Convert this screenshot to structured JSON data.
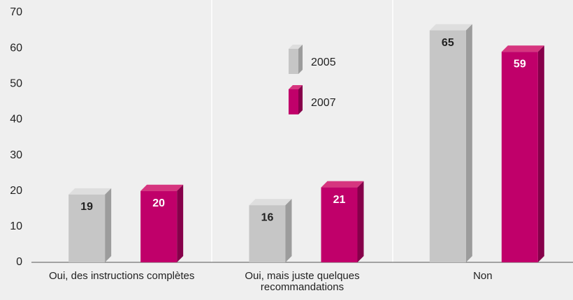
{
  "chart_data": {
    "type": "bar",
    "categories": [
      "Oui, des instructions complètes",
      "Oui, mais juste quelques recommandations",
      "Non"
    ],
    "series": [
      {
        "name": "2005",
        "color": "#c6c6c6",
        "values": [
          19,
          16,
          65
        ]
      },
      {
        "name": "2007",
        "color": "#c0006a",
        "values": [
          20,
          21,
          59
        ]
      }
    ],
    "ylim": [
      0,
      70
    ],
    "yticks": [
      0,
      10,
      20,
      30,
      40,
      50,
      60,
      70
    ],
    "grid": false
  }
}
